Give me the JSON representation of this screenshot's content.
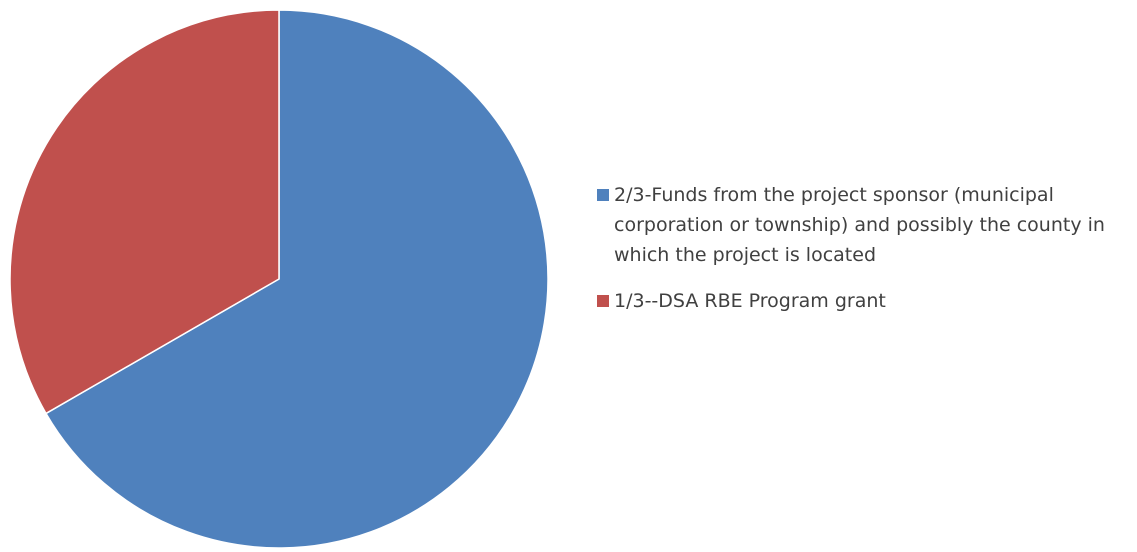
{
  "chart_data": {
    "type": "pie",
    "title": "",
    "slices": [
      {
        "label": "2/3-Funds from the project sponsor (municipal corporation or township) and possibly the county in which the project is located",
        "value": 66.67,
        "color": "#4F81BD"
      },
      {
        "label": "1/3--DSA RBE Program grant",
        "value": 33.33,
        "color": "#C0504D"
      }
    ],
    "start_angle_deg": 0,
    "direction": "clockwise",
    "legend_position": "right"
  }
}
